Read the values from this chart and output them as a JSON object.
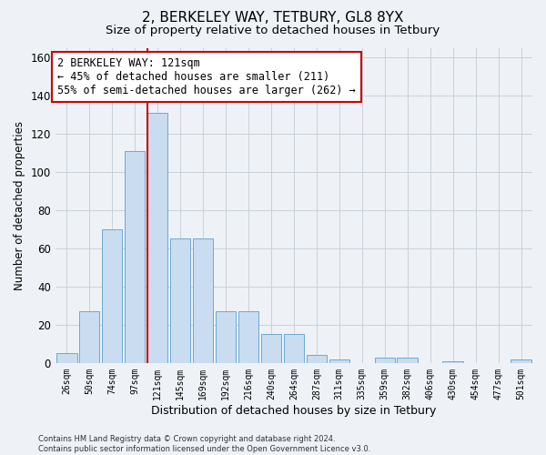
{
  "title": "2, BERKELEY WAY, TETBURY, GL8 8YX",
  "subtitle": "Size of property relative to detached houses in Tetbury",
  "xlabel": "Distribution of detached houses by size in Tetbury",
  "ylabel": "Number of detached properties",
  "bar_labels": [
    "26sqm",
    "50sqm",
    "74sqm",
    "97sqm",
    "121sqm",
    "145sqm",
    "169sqm",
    "192sqm",
    "216sqm",
    "240sqm",
    "264sqm",
    "287sqm",
    "311sqm",
    "335sqm",
    "359sqm",
    "382sqm",
    "406sqm",
    "430sqm",
    "454sqm",
    "477sqm",
    "501sqm"
  ],
  "bar_values": [
    5,
    27,
    70,
    111,
    131,
    65,
    65,
    27,
    27,
    15,
    15,
    4,
    2,
    0,
    3,
    3,
    0,
    1,
    0,
    0,
    2
  ],
  "bar_color": "#c9dcf0",
  "bar_edge_color": "#6aaad4",
  "vline_color": "#cc0000",
  "annotation_text": "2 BERKELEY WAY: 121sqm\n← 45% of detached houses are smaller (211)\n55% of semi-detached houses are larger (262) →",
  "annotation_box_color": "#ffffff",
  "annotation_box_edge": "#cc0000",
  "ylim": [
    0,
    165
  ],
  "yticks": [
    0,
    20,
    40,
    60,
    80,
    100,
    120,
    140,
    160
  ],
  "grid_color": "#c8d0da",
  "footer": "Contains HM Land Registry data © Crown copyright and database right 2024.\nContains public sector information licensed under the Open Government Licence v3.0.",
  "bg_color": "#eef2f7",
  "title_fontsize": 11,
  "subtitle_fontsize": 9.5,
  "annotation_fontsize": 8.5
}
